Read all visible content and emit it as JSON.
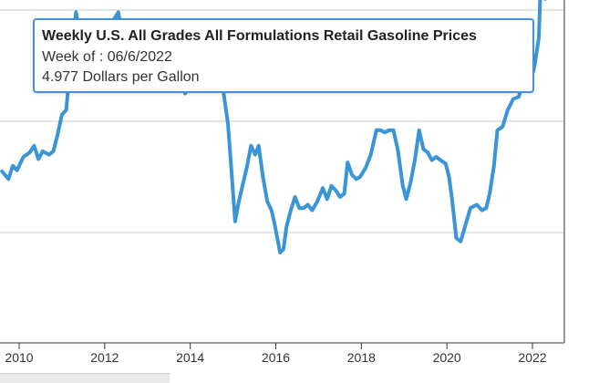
{
  "tooltip": {
    "title": "Weekly U.S. All Grades All Formulations Retail Gasoline Prices",
    "week_prefix": "Week of : ",
    "week": "06/6/2022",
    "value_line": "4.977 Dollars per Gallon"
  },
  "colors": {
    "series": "#3a95d8",
    "grid": "#c8c8c8",
    "axis": "#333333",
    "tooltip_border": "#4a90d9"
  },
  "chart_data": {
    "type": "line",
    "title": "Weekly U.S. All Grades All Formulations Retail Gasoline Prices",
    "xlabel": "",
    "ylabel": "",
    "xlim": [
      2009.6,
      2022.75
    ],
    "ylim": [
      1.0,
      5.3
    ],
    "x_ticks": [
      2010,
      2012,
      2014,
      2016,
      2018,
      2020,
      2022
    ],
    "y_gridlines": [
      2.0,
      3.0,
      4.0,
      5.0
    ],
    "grid": "horizontal",
    "series": [
      {
        "unit": "Dollars per Gallon",
        "points": [
          [
            2009.6,
            2.55
          ],
          [
            2009.75,
            2.48
          ],
          [
            2009.85,
            2.6
          ],
          [
            2009.95,
            2.56
          ],
          [
            2010.1,
            2.68
          ],
          [
            2010.25,
            2.72
          ],
          [
            2010.35,
            2.78
          ],
          [
            2010.45,
            2.66
          ],
          [
            2010.55,
            2.73
          ],
          [
            2010.7,
            2.7
          ],
          [
            2010.8,
            2.73
          ],
          [
            2010.9,
            2.88
          ],
          [
            2011.0,
            3.06
          ],
          [
            2011.1,
            3.1
          ],
          [
            2011.2,
            3.52
          ],
          [
            2011.33,
            3.98
          ],
          [
            2011.42,
            3.78
          ],
          [
            2011.5,
            3.7
          ],
          [
            2011.6,
            3.68
          ],
          [
            2011.7,
            3.72
          ],
          [
            2011.8,
            3.58
          ],
          [
            2011.9,
            3.4
          ],
          [
            2011.97,
            3.28
          ],
          [
            2012.1,
            3.45
          ],
          [
            2012.22,
            3.92
          ],
          [
            2012.32,
            3.98
          ],
          [
            2012.45,
            3.68
          ],
          [
            2012.52,
            3.45
          ],
          [
            2012.6,
            3.5
          ],
          [
            2012.7,
            3.82
          ],
          [
            2012.8,
            3.9
          ],
          [
            2012.88,
            3.62
          ],
          [
            2012.97,
            3.3
          ],
          [
            2013.05,
            3.45
          ],
          [
            2013.15,
            3.72
          ],
          [
            2013.28,
            3.6
          ],
          [
            2013.38,
            3.7
          ],
          [
            2013.48,
            3.6
          ],
          [
            2013.58,
            3.62
          ],
          [
            2013.68,
            3.55
          ],
          [
            2013.78,
            3.38
          ],
          [
            2013.88,
            3.25
          ],
          [
            2013.97,
            3.3
          ],
          [
            2014.1,
            3.28
          ],
          [
            2014.22,
            3.55
          ],
          [
            2014.35,
            3.7
          ],
          [
            2014.48,
            3.68
          ],
          [
            2014.58,
            3.6
          ],
          [
            2014.68,
            3.48
          ],
          [
            2014.78,
            3.25
          ],
          [
            2014.88,
            2.98
          ],
          [
            2014.97,
            2.52
          ],
          [
            2015.05,
            2.1
          ],
          [
            2015.12,
            2.25
          ],
          [
            2015.22,
            2.42
          ],
          [
            2015.32,
            2.58
          ],
          [
            2015.42,
            2.78
          ],
          [
            2015.52,
            2.7
          ],
          [
            2015.6,
            2.78
          ],
          [
            2015.7,
            2.5
          ],
          [
            2015.8,
            2.28
          ],
          [
            2015.9,
            2.2
          ],
          [
            2015.97,
            2.08
          ],
          [
            2016.1,
            1.82
          ],
          [
            2016.18,
            1.85
          ],
          [
            2016.25,
            2.05
          ],
          [
            2016.35,
            2.2
          ],
          [
            2016.45,
            2.32
          ],
          [
            2016.55,
            2.22
          ],
          [
            2016.65,
            2.22
          ],
          [
            2016.75,
            2.25
          ],
          [
            2016.85,
            2.2
          ],
          [
            2016.97,
            2.28
          ],
          [
            2017.1,
            2.4
          ],
          [
            2017.2,
            2.3
          ],
          [
            2017.3,
            2.42
          ],
          [
            2017.4,
            2.38
          ],
          [
            2017.5,
            2.32
          ],
          [
            2017.6,
            2.35
          ],
          [
            2017.68,
            2.63
          ],
          [
            2017.78,
            2.52
          ],
          [
            2017.88,
            2.48
          ],
          [
            2017.97,
            2.5
          ],
          [
            2018.1,
            2.58
          ],
          [
            2018.22,
            2.7
          ],
          [
            2018.35,
            2.92
          ],
          [
            2018.45,
            2.92
          ],
          [
            2018.55,
            2.9
          ],
          [
            2018.65,
            2.92
          ],
          [
            2018.75,
            2.92
          ],
          [
            2018.85,
            2.75
          ],
          [
            2018.97,
            2.42
          ],
          [
            2019.05,
            2.3
          ],
          [
            2019.15,
            2.45
          ],
          [
            2019.25,
            2.65
          ],
          [
            2019.35,
            2.92
          ],
          [
            2019.45,
            2.75
          ],
          [
            2019.55,
            2.72
          ],
          [
            2019.65,
            2.65
          ],
          [
            2019.75,
            2.68
          ],
          [
            2019.85,
            2.65
          ],
          [
            2019.97,
            2.62
          ],
          [
            2020.05,
            2.5
          ],
          [
            2020.12,
            2.3
          ],
          [
            2020.22,
            1.95
          ],
          [
            2020.32,
            1.92
          ],
          [
            2020.42,
            2.05
          ],
          [
            2020.55,
            2.22
          ],
          [
            2020.7,
            2.25
          ],
          [
            2020.82,
            2.2
          ],
          [
            2020.92,
            2.22
          ],
          [
            2021.0,
            2.35
          ],
          [
            2021.1,
            2.6
          ],
          [
            2021.18,
            2.92
          ],
          [
            2021.3,
            2.95
          ],
          [
            2021.42,
            3.1
          ],
          [
            2021.55,
            3.2
          ],
          [
            2021.68,
            3.22
          ],
          [
            2021.8,
            3.38
          ],
          [
            2021.9,
            3.42
          ],
          [
            2021.97,
            3.38
          ],
          [
            2022.05,
            3.5
          ],
          [
            2022.15,
            3.75
          ],
          [
            2022.2,
            4.32
          ],
          [
            2022.3,
            4.1
          ],
          [
            2022.37,
            4.3
          ],
          [
            2022.43,
            4.62
          ],
          [
            2022.45,
            4.977
          ]
        ]
      }
    ]
  }
}
